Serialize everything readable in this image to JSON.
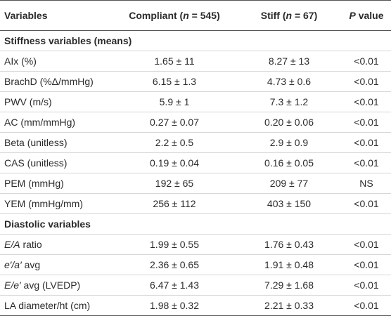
{
  "table": {
    "header": [
      "Variables",
      [
        {
          "t": "Compliant ("
        },
        {
          "t": "n",
          "i": true
        },
        {
          "t": " = 545)"
        }
      ],
      [
        {
          "t": "Stiff ("
        },
        {
          "t": "n",
          "i": true
        },
        {
          "t": " = 67)"
        }
      ],
      [
        {
          "t": "P",
          "i": true
        },
        {
          "t": " value"
        }
      ]
    ],
    "sections": [
      {
        "title": "Stiffness variables (means)",
        "rows": [
          [
            "AIx (%)",
            "1.65 ± 11",
            "8.27 ± 13",
            "<0.01"
          ],
          [
            "BrachD (%Δ/mmHg)",
            "6.15 ± 1.3",
            "4.73 ± 0.6",
            "<0.01"
          ],
          [
            "PWV (m/s)",
            "5.9 ± 1",
            "7.3 ± 1.2",
            "<0.01"
          ],
          [
            "AC (mm/mmHg)",
            "0.27 ± 0.07",
            "0.20 ± 0.06",
            "<0.01"
          ],
          [
            "Beta (unitless)",
            "2.2 ± 0.5",
            "2.9 ± 0.9",
            "<0.01"
          ],
          [
            "CAS (unitless)",
            "0.19 ± 0.04",
            "0.16 ± 0.05",
            "<0.01"
          ],
          [
            "PEM (mmHg)",
            "192 ± 65",
            "209 ± 77",
            "NS"
          ],
          [
            "YEM (mmHg/mm)",
            "256 ± 112",
            "403 ± 150",
            "<0.01"
          ]
        ]
      },
      {
        "title": "Diastolic variables",
        "rows": [
          [
            [
              {
                "t": "E/A",
                "i": true
              },
              {
                "t": " ratio"
              }
            ],
            "1.99 ± 0.55",
            "1.76 ± 0.43",
            "<0.01"
          ],
          [
            [
              {
                "t": "e′/a′",
                "i": true
              },
              {
                "t": " avg"
              }
            ],
            "2.36 ± 0.65",
            "1.91 ± 0.48",
            "<0.01"
          ],
          [
            [
              {
                "t": "E/e′",
                "i": true
              },
              {
                "t": " avg (LVEDP)"
              }
            ],
            "6.47 ± 1.43",
            "7.29 ± 1.68",
            "<0.01"
          ],
          [
            "LA diameter/ht (cm)",
            "1.98 ± 0.32",
            "2.21 ± 0.33",
            "<0.01"
          ]
        ]
      }
    ]
  }
}
